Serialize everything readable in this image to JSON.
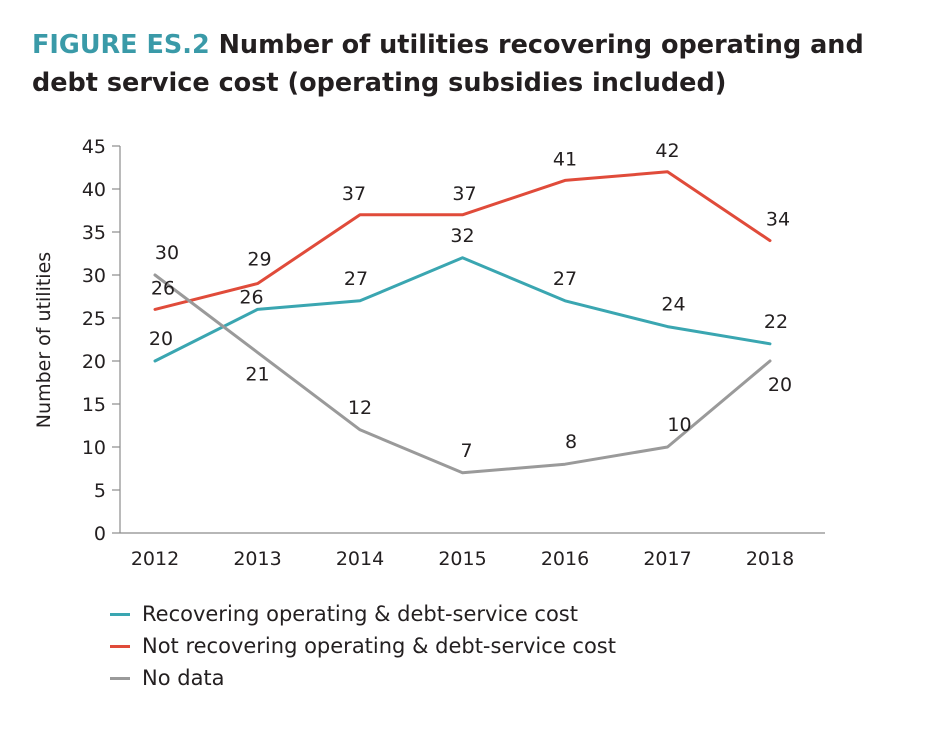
{
  "title": {
    "figure_label": "FIGURE ES.2",
    "text": "Number of utilities recovering operating and debt service cost (operating subsidies included)"
  },
  "chart_data": {
    "type": "line",
    "categories": [
      "2012",
      "2013",
      "2014",
      "2015",
      "2016",
      "2017",
      "2018"
    ],
    "series": [
      {
        "name": "Recovering operating & debt-service cost",
        "color": "#3aa6b1",
        "values": [
          20,
          26,
          27,
          32,
          27,
          24,
          22
        ]
      },
      {
        "name": "Not recovering operating & debt-service cost",
        "color": "#e04b3a",
        "values": [
          26,
          29,
          37,
          37,
          41,
          42,
          34
        ]
      },
      {
        "name": "No data",
        "color": "#9a9a9a",
        "values": [
          30,
          21,
          12,
          7,
          8,
          10,
          20
        ]
      }
    ],
    "ylabel": "Number of utilities",
    "xlabel": "",
    "ylim": [
      0,
      45
    ],
    "yticks": [
      0,
      5,
      10,
      15,
      20,
      25,
      30,
      35,
      40,
      45
    ],
    "legend_position": "bottom-left"
  }
}
